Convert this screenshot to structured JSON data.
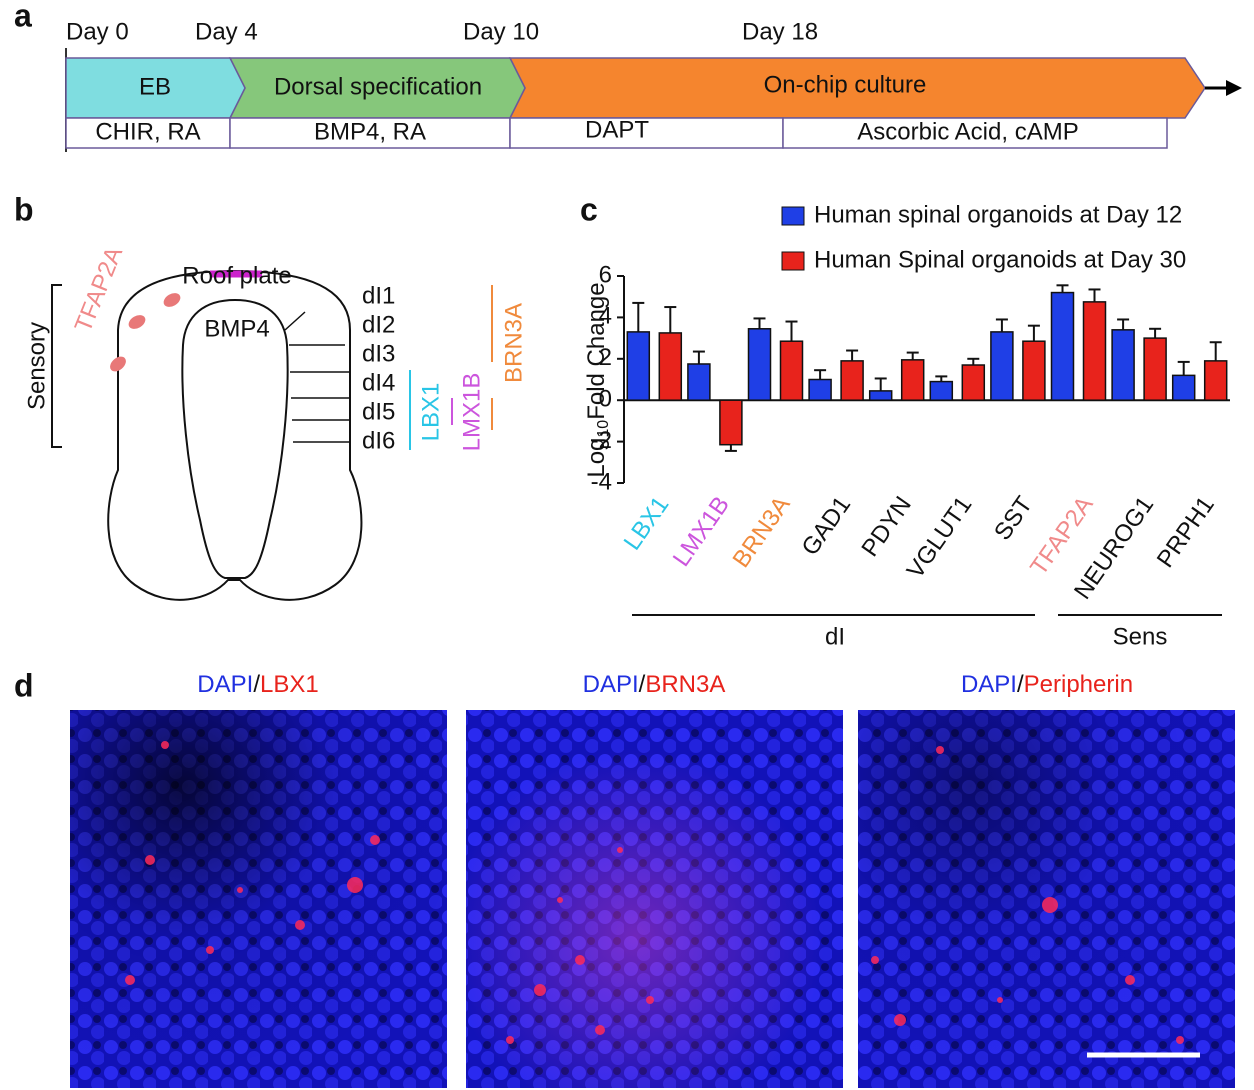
{
  "panel_labels": [
    "a",
    "b",
    "c",
    "d"
  ],
  "timeline": {
    "days": [
      "Day 0",
      "Day 4",
      "Day 10",
      "Day 18"
    ],
    "stages": [
      "EB",
      "Dorsal specification",
      "On-chip culture"
    ],
    "treatments": [
      "CHIR, RA",
      "BMP4, RA",
      "DAPT",
      "Ascorbic Acid, cAMP"
    ]
  },
  "diagram": {
    "sensory": "Sensory",
    "tfap2a": "TFAP2A",
    "roof_plate": "Roof plate",
    "bmp4": "BMP4",
    "domains": [
      "dI1",
      "dI2",
      "dI3",
      "dI4",
      "dI5",
      "dI6"
    ],
    "lbx1": "LBX1",
    "lmx1b": "LMX1B",
    "brn3a": "BRN3A"
  },
  "chart_data": {
    "type": "bar",
    "ylabel": {
      "prefix": "Log",
      "subscript": "10",
      "suffix": "Fold Change"
    },
    "categories": [
      "LBX1",
      "LMX1B",
      "BRN3A",
      "GAD1",
      "PDYN",
      "VGLUT1",
      "SST",
      "TFAP2A",
      "NEUROG1",
      "PRPH1"
    ],
    "category_colors": [
      "#29c5e6",
      "#cc55dd",
      "#f08a3c",
      "#111111",
      "#111111",
      "#111111",
      "#111111",
      "#f08a8a",
      "#111111",
      "#111111"
    ],
    "series": [
      {
        "name": "Human spinal organoids at Day 12",
        "color": "#1f3fe6",
        "values": [
          3.3,
          1.75,
          3.45,
          1.0,
          0.45,
          0.9,
          3.3,
          5.2,
          3.4,
          1.2
        ],
        "errors": [
          1.4,
          0.6,
          0.5,
          0.45,
          0.6,
          0.25,
          0.6,
          0.35,
          0.5,
          0.65
        ]
      },
      {
        "name": "Human Spinal organoids at Day 30",
        "color": "#e8231c",
        "values": [
          3.25,
          -2.15,
          2.85,
          1.9,
          1.95,
          1.7,
          2.85,
          4.75,
          3.0,
          1.9
        ],
        "errors": [
          1.25,
          0.3,
          0.95,
          0.5,
          0.35,
          0.3,
          0.75,
          0.6,
          0.45,
          0.9
        ]
      }
    ],
    "ylim": [
      -4,
      6
    ],
    "yticks": [
      -4,
      -2,
      0,
      2,
      4,
      6
    ],
    "groups": [
      "dI",
      "Sens"
    ]
  },
  "images": [
    {
      "stain": "DAPI",
      "sep": "/",
      "marker": "LBX1"
    },
    {
      "stain": "DAPI",
      "sep": "/",
      "marker": "BRN3A"
    },
    {
      "stain": "DAPI",
      "sep": "/",
      "marker": "Peripherin"
    }
  ]
}
